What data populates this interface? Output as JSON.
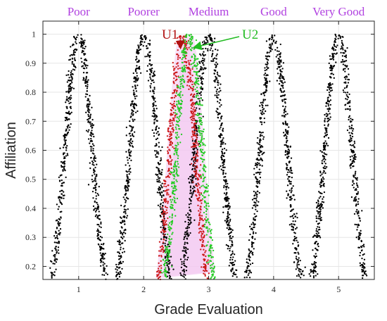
{
  "chart_data": {
    "type": "scatter",
    "title": "",
    "xlabel": "Grade Evaluation",
    "ylabel": "Affiliation",
    "xlim": [
      0.45,
      5.55
    ],
    "ylim": [
      0.155,
      1.045
    ],
    "xticks": [
      "1",
      "2",
      "3",
      "4",
      "5"
    ],
    "yticks": [
      "0.2",
      "0.3",
      "0.4",
      "0.5",
      "0.6",
      "0.7",
      "0.8",
      "0.9",
      "1"
    ],
    "grid": true,
    "categories": [
      {
        "label": "Poor",
        "center": 1
      },
      {
        "label": "Poorer",
        "center": 2
      },
      {
        "label": "Medium",
        "center": 3
      },
      {
        "label": "Good",
        "center": 4
      },
      {
        "label": "Very Good",
        "center": 5
      }
    ],
    "series": [
      {
        "name": "",
        "color": "#000000",
        "centers": [
          1,
          2,
          3,
          4,
          5
        ],
        "spread_at_0.2": 0.38,
        "y_min": 0.16,
        "y_max": 1.0
      },
      {
        "name": "U1",
        "color": "#cc1a1a",
        "center": 2.6,
        "spread_at_0.2": 0.35,
        "y_min": 0.16,
        "y_max": 1.0
      },
      {
        "name": "U2",
        "color": "#22cc22",
        "center": 2.7,
        "spread_at_0.2": 0.35,
        "y_min": 0.16,
        "y_max": 1.0
      }
    ],
    "annotations": [
      {
        "text": "U1",
        "color": "#b01010"
      },
      {
        "text": "U2",
        "color": "#22bb22"
      }
    ],
    "background_color": "#ffffff",
    "cloud_highlight_color": "#f2c4f0"
  }
}
